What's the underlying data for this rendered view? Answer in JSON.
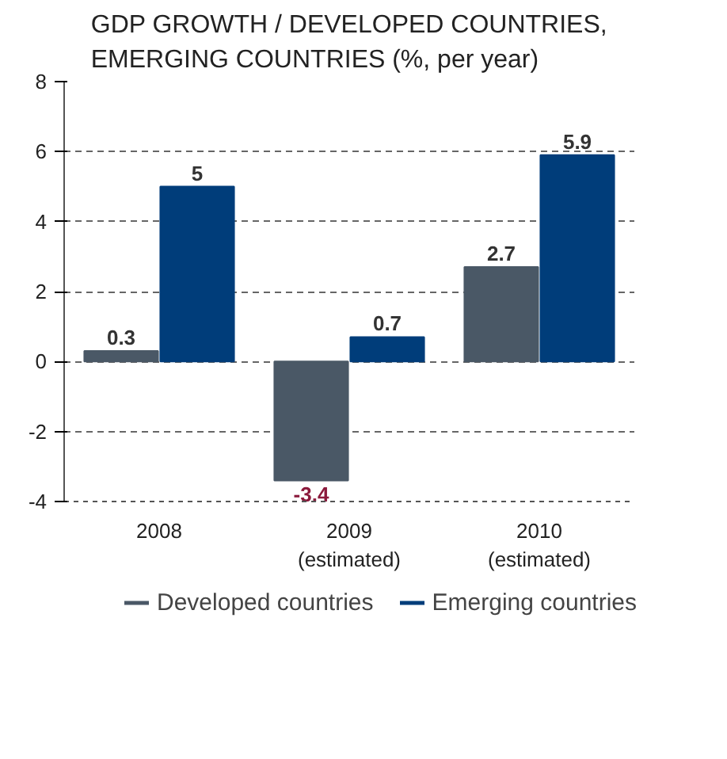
{
  "chart_data": {
    "type": "bar",
    "title": "GDP GROWTH / DEVELOPED COUNTRIES,\nEMERGING COUNTRIES (%, per year)",
    "categories": [
      "2008",
      "2009\n(estimated)",
      "2010\n(estimated)"
    ],
    "series": [
      {
        "name": "Developed countries",
        "color": "#4a5866",
        "values": [
          0.3,
          -3.4,
          2.7
        ]
      },
      {
        "name": "Emerging countries",
        "color": "#003d7a",
        "values": [
          5,
          0.7,
          5.9
        ]
      }
    ],
    "ylim": [
      -4,
      8
    ],
    "yticks": [
      -4,
      -2,
      0,
      2,
      4,
      6,
      8
    ],
    "grid": "y",
    "legend": "bottom",
    "data_labels": true
  }
}
